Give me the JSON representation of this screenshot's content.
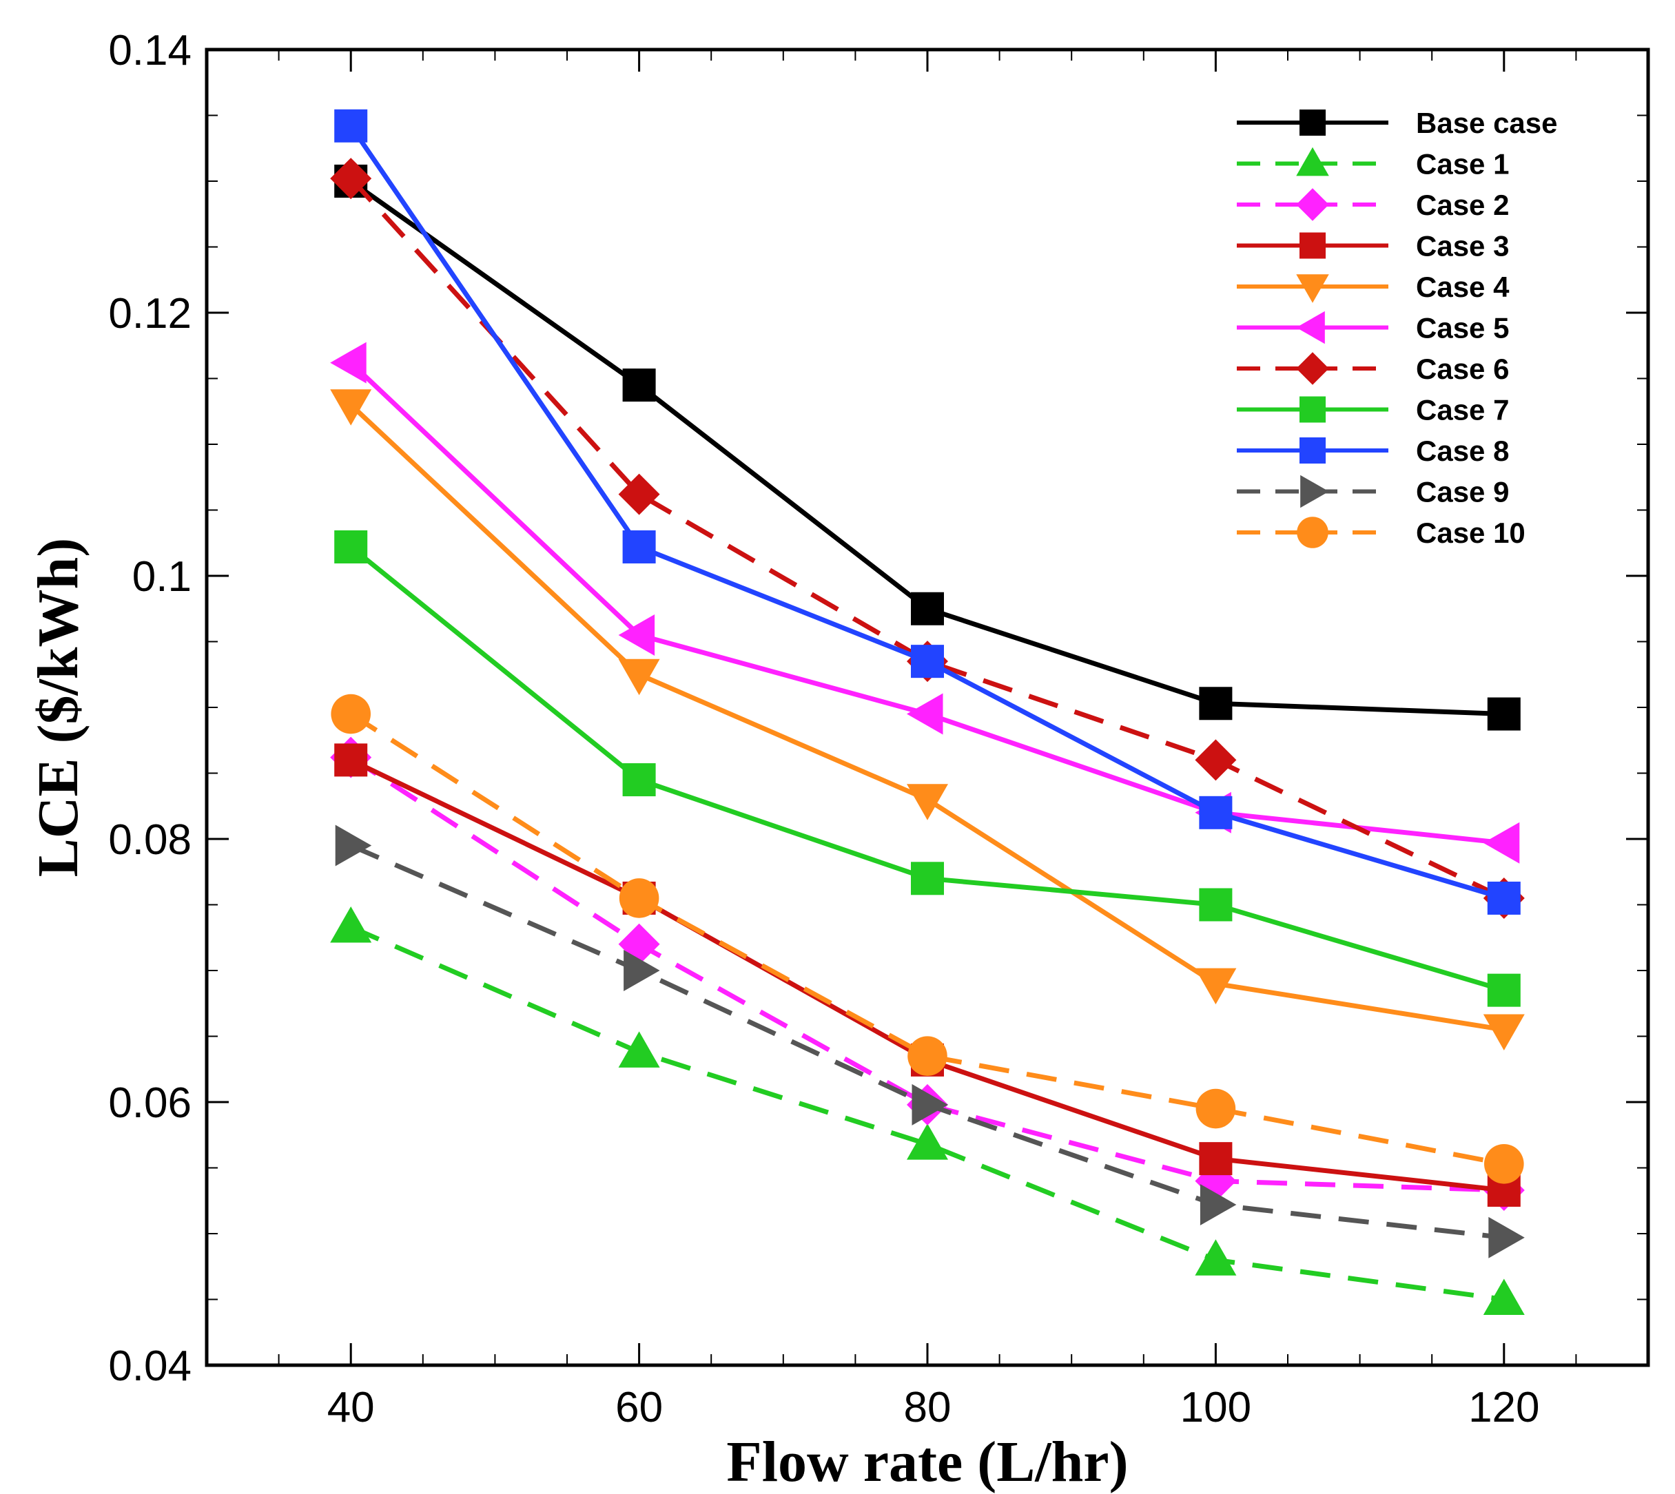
{
  "chart_data": {
    "type": "line",
    "title": "",
    "xlabel": "Flow rate (L/hr)",
    "ylabel": "LCE ($/kWh)",
    "xlim": [
      30,
      130
    ],
    "ylim": [
      0.04,
      0.14
    ],
    "grid": false,
    "legend_position": "top-right",
    "x_ticks": [
      40,
      60,
      80,
      100,
      120
    ],
    "x_tick_labels": [
      "40",
      "60",
      "80",
      "100",
      "120"
    ],
    "y_ticks": [
      0.04,
      0.06,
      0.08,
      0.1,
      0.12,
      0.14
    ],
    "y_tick_labels": [
      "0.04",
      "0.06",
      "0.08",
      "0.1",
      "0.12",
      "0.14"
    ],
    "x": [
      40,
      60,
      80,
      100,
      120
    ],
    "series": [
      {
        "name": "Base case",
        "values": [
          0.13,
          0.1145,
          0.0975,
          0.0903,
          0.0895
        ],
        "color": "#000000",
        "dash": false,
        "marker": "square"
      },
      {
        "name": "Case 1",
        "values": [
          0.0733,
          0.0638,
          0.0568,
          0.048,
          0.045
        ],
        "color": "#22cc22",
        "dash": true,
        "marker": "triangle-up"
      },
      {
        "name": "Case 2",
        "values": [
          0.0862,
          0.072,
          0.0598,
          0.054,
          0.0533
        ],
        "color": "#ff22ff",
        "dash": true,
        "marker": "diamond"
      },
      {
        "name": "Case 3",
        "values": [
          0.086,
          0.0755,
          0.0632,
          0.0557,
          0.0533
        ],
        "color": "#cc1111",
        "dash": false,
        "marker": "square"
      },
      {
        "name": "Case 4",
        "values": [
          0.113,
          0.0925,
          0.083,
          0.069,
          0.0655
        ],
        "color": "#ff8c1a",
        "dash": false,
        "marker": "triangle-down"
      },
      {
        "name": "Case 5",
        "values": [
          0.1162,
          0.0955,
          0.0895,
          0.082,
          0.0797
        ],
        "color": "#ff22ff",
        "dash": false,
        "marker": "triangle-left"
      },
      {
        "name": "Case 6",
        "values": [
          0.1302,
          0.1062,
          0.0935,
          0.086,
          0.0755
        ],
        "color": "#cc1111",
        "dash": true,
        "marker": "diamond"
      },
      {
        "name": "Case 7",
        "values": [
          0.1022,
          0.0845,
          0.077,
          0.075,
          0.0685
        ],
        "color": "#22cc22",
        "dash": false,
        "marker": "square"
      },
      {
        "name": "Case 8",
        "values": [
          0.1342,
          0.1022,
          0.0935,
          0.082,
          0.0755
        ],
        "color": "#2244ff",
        "dash": false,
        "marker": "square"
      },
      {
        "name": "Case 9",
        "values": [
          0.0795,
          0.07,
          0.0598,
          0.0522,
          0.0497
        ],
        "color": "#555555",
        "dash": true,
        "marker": "triangle-right"
      },
      {
        "name": "Case 10",
        "values": [
          0.0895,
          0.0755,
          0.0635,
          0.0595,
          0.0553
        ],
        "color": "#ff8c1a",
        "dash": true,
        "marker": "circle"
      }
    ]
  }
}
